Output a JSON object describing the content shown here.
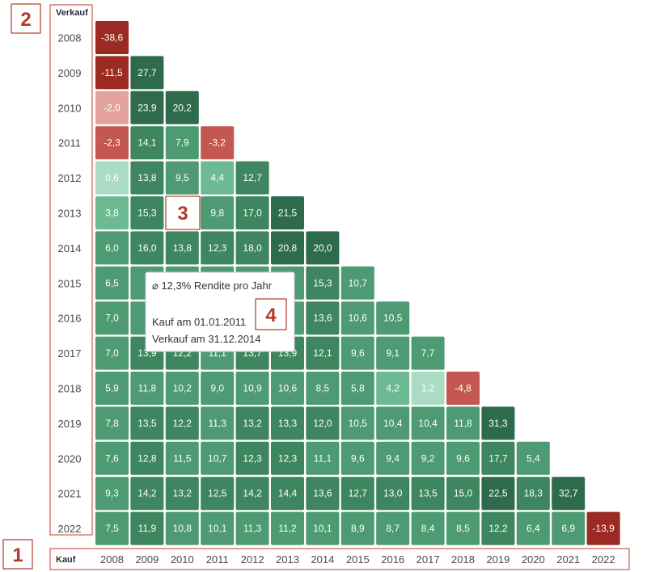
{
  "chart_data": {
    "type": "heatmap",
    "title": "",
    "xlabel": "Kauf",
    "ylabel": "Verkauf",
    "years": [
      "2008",
      "2009",
      "2010",
      "2011",
      "2012",
      "2013",
      "2014",
      "2015",
      "2016",
      "2017",
      "2018",
      "2019",
      "2020",
      "2021",
      "2022"
    ],
    "rows": [
      [
        "-38,6"
      ],
      [
        "-11,5",
        "27,7"
      ],
      [
        "-2,0",
        "23,9",
        "20,2"
      ],
      [
        "-2,3",
        "14,1",
        "7,9",
        "-3,2"
      ],
      [
        "0,6",
        "13,8",
        "9,5",
        "4,4",
        "12,7"
      ],
      [
        "3,8",
        "15,3",
        "",
        "9,8",
        "17,0",
        "21,5"
      ],
      [
        "6,0",
        "16,0",
        "13,8",
        "12,3",
        "18,0",
        "20,8",
        "20,0"
      ],
      [
        "6,5",
        "",
        "",
        "",
        "",
        "",
        "15,3",
        "10,7"
      ],
      [
        "7,0",
        "",
        "",
        "",
        "",
        "",
        "13,6",
        "10,6",
        "10,5"
      ],
      [
        "7,0",
        "13,9",
        "12,2",
        "11,1",
        "13,7",
        "13,9",
        "12,1",
        "9,6",
        "9,1",
        "7,7"
      ],
      [
        "5,9",
        "11,8",
        "10,2",
        "9,0",
        "10,9",
        "10,6",
        "8,5",
        "5,8",
        "4,2",
        "1,2",
        "-4,8"
      ],
      [
        "7,8",
        "13,5",
        "12,2",
        "11,3",
        "13,2",
        "13,3",
        "12,0",
        "10,5",
        "10,4",
        "10,4",
        "11,8",
        "31,3"
      ],
      [
        "7,6",
        "12,8",
        "11,5",
        "10,7",
        "12,3",
        "12,3",
        "11,1",
        "9,6",
        "9,4",
        "9,2",
        "9,6",
        "17,7",
        "5,4"
      ],
      [
        "9,3",
        "14,2",
        "13,2",
        "12,5",
        "14,2",
        "14,4",
        "13,6",
        "12,7",
        "13,0",
        "13,5",
        "15,0",
        "22,5",
        "18,3",
        "32,7"
      ],
      [
        "7,5",
        "11,9",
        "10,8",
        "10,1",
        "11,3",
        "11,2",
        "10,1",
        "8,9",
        "8,7",
        "8,4",
        "8,5",
        "12,2",
        "6,4",
        "6,9",
        "-13,9"
      ]
    ],
    "grid": false,
    "legend": "none"
  },
  "markers": {
    "m1": "1",
    "m2": "2",
    "m3": "3",
    "m4": "4"
  },
  "tooltip": {
    "line1": "⌀ 12,3%  Rendite pro Jahr",
    "line2": "Kauf am 01.01.2011",
    "line3": "Verkauf am 31.12.2014"
  },
  "colors": {
    "red_dark": "#9b2a22",
    "red_mid": "#c45850",
    "red_light": "#e2a39f",
    "green_palest": "#a9dcc2",
    "green_light": "#6cb992",
    "green_mid": "#4d9a73",
    "green_dark": "#2e6b4d",
    "marker_red": "#b23a2a"
  }
}
